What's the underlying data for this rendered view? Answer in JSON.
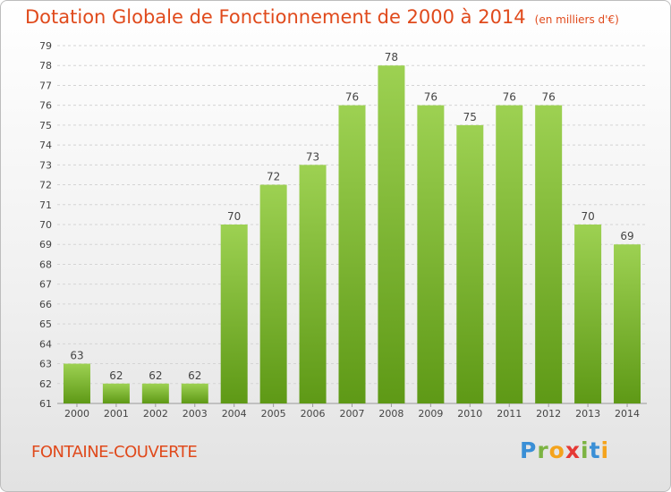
{
  "title": "Dotation Globale de Fonctionnement de 2000 à 2014",
  "unit": "(en milliers d'€)",
  "commune": "FONTAINE-COUVERTE",
  "logo": "Proxiti",
  "colors": {
    "bar_top": "#9dd152",
    "bar_bottom": "#5e9916",
    "title": "#e04a1c"
  },
  "chart_data": {
    "type": "bar",
    "categories": [
      "2000",
      "2001",
      "2002",
      "2003",
      "2004",
      "2005",
      "2006",
      "2007",
      "2008",
      "2009",
      "2010",
      "2011",
      "2012",
      "2013",
      "2014"
    ],
    "values": [
      63,
      62,
      62,
      62,
      70,
      72,
      73,
      76,
      78,
      76,
      75,
      76,
      76,
      70,
      69
    ],
    "ylim": [
      61,
      79
    ],
    "yticks": [
      61,
      62,
      63,
      64,
      65,
      66,
      67,
      68,
      69,
      70,
      71,
      72,
      73,
      74,
      75,
      76,
      77,
      78,
      79
    ],
    "grid": true,
    "data_labels": true
  }
}
